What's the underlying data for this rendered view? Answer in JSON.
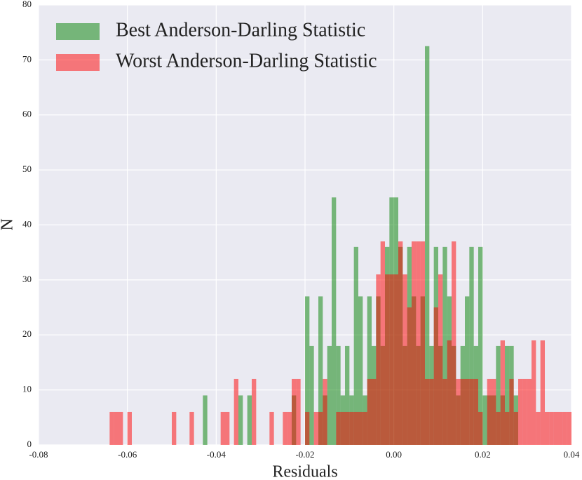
{
  "chart_data": {
    "type": "histogram",
    "xlabel": "Residuals",
    "ylabel": "N",
    "xlim": [
      -0.08,
      0.04
    ],
    "xticks": [
      {
        "value": -0.08,
        "label": "-0.08"
      },
      {
        "value": -0.06,
        "label": "-0.06"
      },
      {
        "value": -0.04,
        "label": "-0.04"
      },
      {
        "value": -0.02,
        "label": "-0.02"
      },
      {
        "value": 0,
        "label": "0.00"
      },
      {
        "value": 0.02,
        "label": "0.02"
      },
      {
        "value": 0.04,
        "label": "0.04"
      }
    ],
    "ylim": [
      0,
      80
    ],
    "yticks": [
      0,
      10,
      20,
      30,
      40,
      50,
      60,
      70,
      80
    ],
    "grid": true,
    "legend": "upper left",
    "alpha": 0.5,
    "series": [
      {
        "name": "Best Anderson-Darling Statistic",
        "color": "#008000",
        "bins": [
          -0.043,
          -0.042,
          -0.041,
          -0.04,
          -0.039,
          -0.038,
          -0.037,
          -0.036,
          -0.035,
          -0.034,
          -0.033,
          -0.032,
          -0.031,
          -0.03,
          -0.029,
          -0.028,
          -0.027,
          -0.026,
          -0.025,
          -0.024,
          -0.023,
          -0.022,
          -0.021,
          -0.02,
          -0.019,
          -0.018,
          -0.017,
          -0.016,
          -0.015,
          -0.014,
          -0.013,
          -0.012,
          -0.011,
          -0.01,
          -0.009,
          -0.008,
          -0.007,
          -0.006,
          -0.005,
          -0.004,
          -0.003,
          -0.002,
          -0.001,
          0.0,
          0.001,
          0.002,
          0.003,
          0.004,
          0.005,
          0.006,
          0.007,
          0.008,
          0.009,
          0.01,
          0.011,
          0.012,
          0.013,
          0.014,
          0.015,
          0.016,
          0.017,
          0.018,
          0.019,
          0.02,
          0.021,
          0.022,
          0.023,
          0.024,
          0.025,
          0.026,
          0.027,
          0.028
        ],
        "values": [
          9,
          0,
          0,
          0,
          0,
          0,
          0,
          0,
          9,
          0,
          9,
          0,
          0,
          0,
          0,
          0,
          0,
          0,
          0,
          0,
          9,
          0,
          0,
          27,
          18,
          0,
          27,
          9,
          18,
          45,
          18,
          9,
          18,
          9,
          36,
          27,
          9,
          27,
          18,
          27,
          18,
          36,
          45,
          45,
          36,
          18,
          36,
          27,
          18,
          27,
          72.5,
          18,
          36,
          18,
          36,
          27,
          18,
          9,
          18,
          27,
          36,
          18,
          36,
          9,
          9,
          9,
          18,
          9,
          18,
          18,
          9
        ]
      },
      {
        "name": "Worst Anderson-Darling Statistic",
        "color": "#ff0000",
        "bins": [
          -0.064,
          -0.063,
          -0.062,
          -0.061,
          -0.06,
          -0.059,
          -0.058,
          -0.057,
          -0.056,
          -0.055,
          -0.054,
          -0.053,
          -0.052,
          -0.051,
          -0.05,
          -0.049,
          -0.048,
          -0.047,
          -0.046,
          -0.045,
          -0.044,
          -0.043,
          -0.042,
          -0.041,
          -0.04,
          -0.039,
          -0.038,
          -0.037,
          -0.036,
          -0.035,
          -0.034,
          -0.033,
          -0.032,
          -0.031,
          -0.03,
          -0.029,
          -0.028,
          -0.027,
          -0.026,
          -0.025,
          -0.024,
          -0.023,
          -0.022,
          -0.021,
          -0.02,
          -0.019,
          -0.018,
          -0.017,
          -0.016,
          -0.015,
          -0.014,
          -0.013,
          -0.012,
          -0.011,
          -0.01,
          -0.009,
          -0.008,
          -0.007,
          -0.006,
          -0.005,
          -0.004,
          -0.003,
          -0.002,
          -0.001,
          0.0,
          0.001,
          0.002,
          0.003,
          0.004,
          0.005,
          0.006,
          0.007,
          0.008,
          0.009,
          0.01,
          0.011,
          0.012,
          0.013,
          0.014,
          0.015,
          0.016,
          0.017,
          0.018,
          0.019,
          0.02,
          0.021,
          0.022,
          0.023,
          0.024,
          0.025,
          0.026,
          0.027,
          0.028,
          0.029,
          0.03,
          0.031,
          0.032,
          0.033,
          0.034,
          0.035,
          0.036,
          0.037,
          0.038,
          0.039,
          0.04
        ],
        "values": [
          6,
          6,
          6,
          0,
          6,
          0,
          0,
          0,
          0,
          0,
          0,
          0,
          0,
          0,
          6,
          0,
          0,
          0,
          6,
          0,
          0,
          0,
          0,
          0,
          0,
          6,
          6,
          0,
          12,
          0,
          0,
          0,
          12,
          0,
          0,
          0,
          6,
          0,
          0,
          6,
          6,
          12,
          12,
          0,
          6,
          0,
          6,
          6,
          12,
          0,
          0,
          6,
          6,
          6,
          6,
          6,
          6,
          6,
          12,
          12,
          31,
          37,
          31,
          31,
          31,
          37,
          31,
          25,
          37,
          37,
          37,
          12,
          12,
          25,
          31,
          12,
          19,
          37,
          12,
          12,
          12,
          12,
          12,
          6,
          0,
          12,
          12,
          6,
          19,
          6,
          12,
          6,
          12,
          12,
          12,
          19,
          6,
          19,
          6,
          6,
          6,
          6,
          6,
          6
        ]
      }
    ]
  }
}
